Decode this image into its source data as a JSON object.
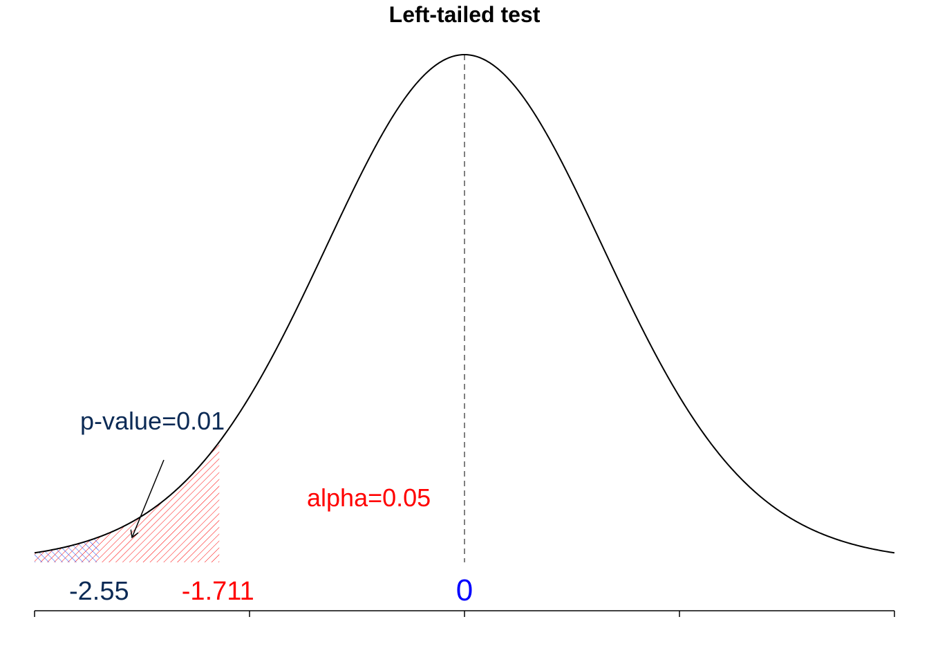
{
  "chart_data": {
    "type": "area",
    "title": "Left-tailed test",
    "xlabel": "",
    "ylabel": "",
    "distribution": "t",
    "degrees_of_freedom": 24,
    "xlim": [
      -3.0,
      3.0
    ],
    "ylim": [
      0,
      0.4
    ],
    "x_ticks": [
      -3,
      -1.5,
      0,
      1.5,
      3
    ],
    "x_tick_labels_shown": false,
    "center": {
      "value": 0,
      "label": "0",
      "color": "#0000ff"
    },
    "critical_value": {
      "value": -1.711,
      "label": "-1.711",
      "color": "#ff0000"
    },
    "test_statistic": {
      "value": -2.55,
      "label": "-2.55",
      "color": "#0b2a55"
    },
    "annotations": {
      "alpha_label": "alpha=0.05",
      "alpha_color": "#ff0000",
      "pvalue_label": "p-value=0.01",
      "pvalue_color": "#0b2a55"
    },
    "shaded_regions": [
      {
        "name": "alpha",
        "from": -3.0,
        "to": -1.711,
        "color": "#ff0000",
        "pattern": "hatch-diagonal"
      },
      {
        "name": "p-value",
        "from": -3.0,
        "to": -2.55,
        "color": "#1f4fff",
        "pattern": "hatch-diagonal-reverse"
      }
    ],
    "grid": false,
    "legend": "none"
  }
}
